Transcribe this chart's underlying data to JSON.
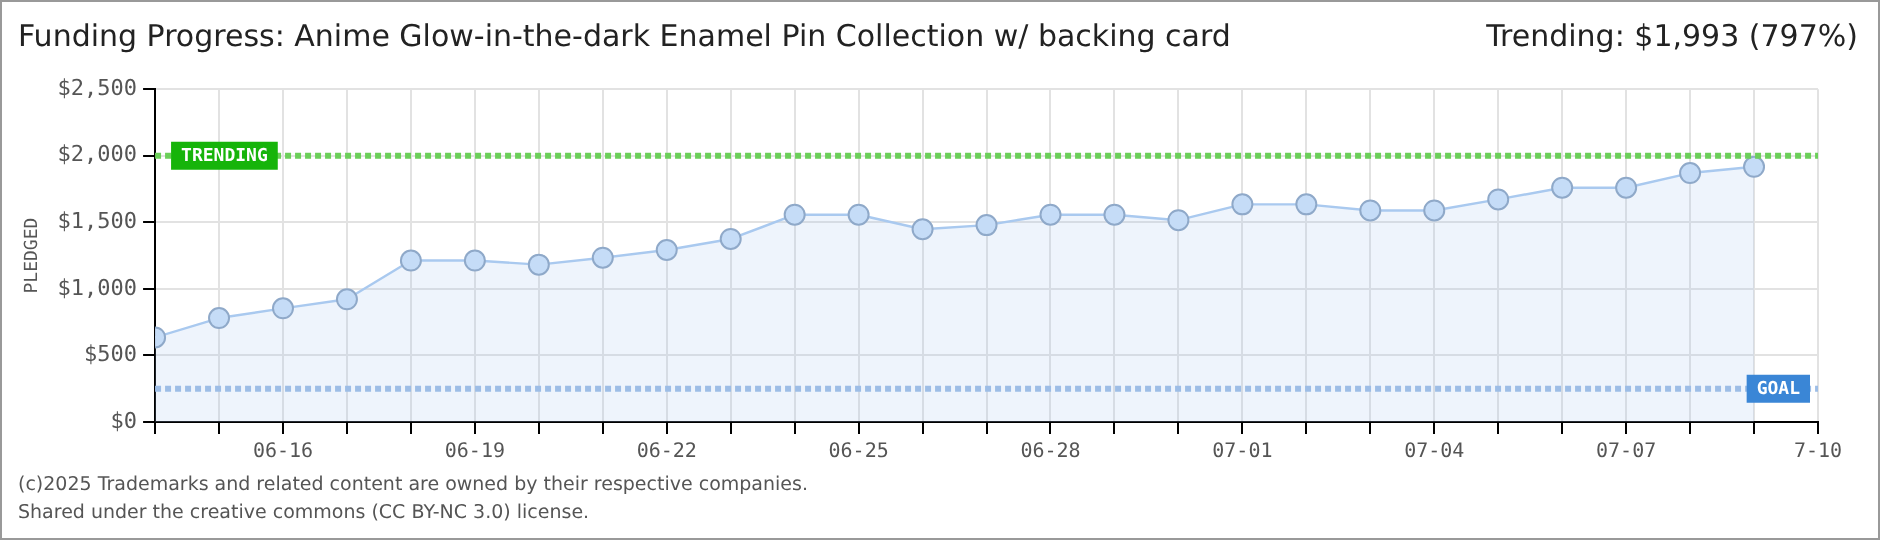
{
  "chart_data": {
    "type": "area",
    "title": "Funding Progress: Anime Glow-in-the-dark Enamel Pin Collection w/ backing card",
    "ylabel": "PLEDGED",
    "annotations": [
      "Trending: $1,993 (797%)",
      "(c)2025 Trademarks and related content are owned by their respective companies.",
      "Shared under the creative commons (CC BY-NC 3.0) license."
    ],
    "x": [
      "--06-14",
      "--06-15",
      "--06-16",
      "--06-17",
      "--06-18",
      "--06-19",
      "--06-20",
      "--06-21",
      "--06-22",
      "--06-23",
      "--06-24",
      "--06-25",
      "--06-26",
      "--06-27",
      "--06-28",
      "--06-29",
      "--06-30",
      "--07-01",
      "--07-02",
      "--07-03",
      "--07-04",
      "--07-05",
      "--07-06",
      "--07-07",
      "--07-08",
      "--07-09"
    ],
    "series": [
      {
        "color": "#a9c9ef",
        "values": [
          635,
          781,
          854,
          922,
          1213,
          1213,
          1182,
          1234,
          1292,
          1375,
          1557,
          1557,
          1448,
          1479,
          1557,
          1557,
          1516,
          1635,
          1635,
          1589,
          1589,
          1672,
          1760,
          1760,
          1870,
          1917
        ]
      }
    ],
    "marker": "circle",
    "grid": true,
    "legend": false,
    "xlim": [
      "--06-14",
      "--07-10"
    ],
    "xticks": [
      {
        "value": "--06-14",
        "label": null
      },
      {
        "value": "--06-15",
        "label": null
      },
      {
        "value": "--06-16",
        "label": "06-16"
      },
      {
        "value": "--06-17",
        "label": null
      },
      {
        "value": "--06-18",
        "label": null
      },
      {
        "value": "--06-19",
        "label": "06-19"
      },
      {
        "value": "--06-20",
        "label": null
      },
      {
        "value": "--06-21",
        "label": null
      },
      {
        "value": "--06-22",
        "label": "06-22"
      },
      {
        "value": "--06-23",
        "label": null
      },
      {
        "value": "--06-24",
        "label": null
      },
      {
        "value": "--06-25",
        "label": "06-25"
      },
      {
        "value": "--06-26",
        "label": null
      },
      {
        "value": "--06-27",
        "label": null
      },
      {
        "value": "--06-28",
        "label": "06-28"
      },
      {
        "value": "--06-29",
        "label": null
      },
      {
        "value": "--06-30",
        "label": null
      },
      {
        "value": "--07-01",
        "label": "07-01"
      },
      {
        "value": "--07-02",
        "label": null
      },
      {
        "value": "--07-03",
        "label": null
      },
      {
        "value": "--07-04",
        "label": "07-04"
      },
      {
        "value": "--07-05",
        "label": null
      },
      {
        "value": "--07-06",
        "label": null
      },
      {
        "value": "--07-07",
        "label": "07-07"
      },
      {
        "value": "--07-08",
        "label": null
      },
      {
        "value": "--07-09",
        "label": null
      },
      {
        "value": "--07-10",
        "label": "7-10"
      }
    ],
    "ylim": [
      0,
      2500
    ],
    "yticks": [
      {
        "value": 0,
        "label": "$0"
      },
      {
        "value": 500,
        "label": "$500"
      },
      {
        "value": 1000,
        "label": "$1,000"
      },
      {
        "value": 1500,
        "label": "$1,500"
      },
      {
        "value": 2000,
        "label": "$2,000"
      },
      {
        "value": 2500,
        "label": "$2,500"
      }
    ],
    "ref_lines": [
      {
        "axis": "y",
        "value": 2000,
        "label": "TRENDING",
        "color": "#6ccf5a"
      },
      {
        "axis": "y",
        "value": 250,
        "label": "GOAL",
        "color": "#9dbde6"
      }
    ]
  }
}
